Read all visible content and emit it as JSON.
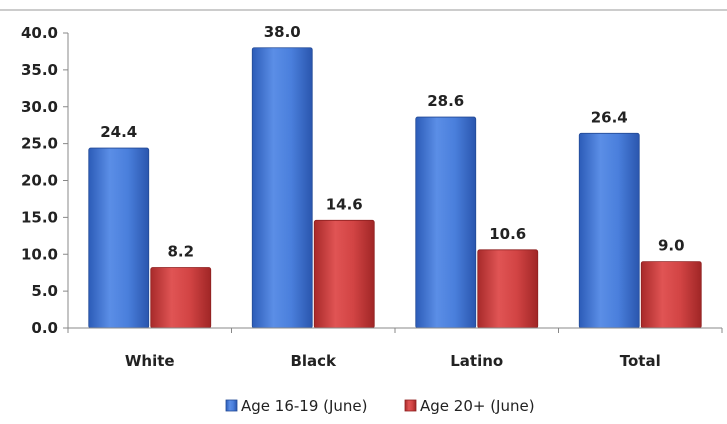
{
  "chart_data": {
    "type": "bar",
    "categories": [
      "White",
      "Black",
      "Latino",
      "Total"
    ],
    "series": [
      {
        "name": "Age 16-19 (June)",
        "values": [
          24.4,
          38.0,
          28.6,
          26.4
        ],
        "color": "#3a6fcf"
      },
      {
        "name": "Age 20+ (June)",
        "values": [
          8.2,
          14.6,
          10.6,
          9.0
        ],
        "color": "#c83a3a"
      }
    ],
    "data_labels": [
      [
        "24.4",
        "38.0",
        "28.6",
        "26.4"
      ],
      [
        "8.2",
        "14.6",
        "10.6",
        "9.0"
      ]
    ],
    "y_ticks": [
      "0.0",
      "5.0",
      "10.0",
      "15.0",
      "20.0",
      "25.0",
      "30.0",
      "35.0",
      "40.0"
    ],
    "ylim": [
      0,
      40
    ],
    "title": "",
    "xlabel": "",
    "ylabel": "",
    "grid": false,
    "legend_position": "bottom"
  }
}
